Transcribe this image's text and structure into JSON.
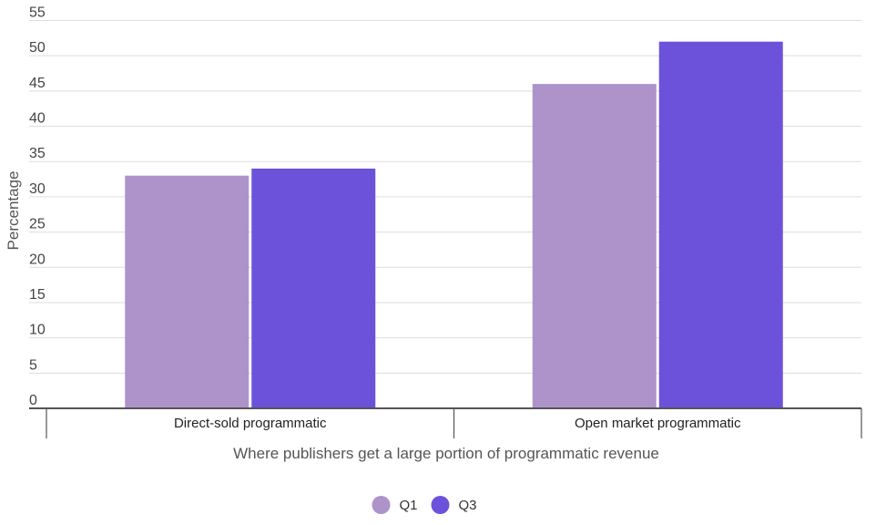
{
  "chart_data": {
    "type": "bar",
    "title": "",
    "xlabel": "Where publishers get a large portion of programmatic revenue",
    "ylabel": "Percentage",
    "ylim": [
      0,
      55
    ],
    "yticks": [
      0,
      5,
      10,
      15,
      20,
      25,
      30,
      35,
      40,
      45,
      50,
      55
    ],
    "categories": [
      "Direct-sold programmatic",
      "Open market programmatic"
    ],
    "series": [
      {
        "name": "Q1",
        "color": "#ad93ca",
        "values": [
          33,
          46
        ]
      },
      {
        "name": "Q3",
        "color": "#6c52db",
        "values": [
          34,
          52
        ]
      }
    ],
    "grid": true,
    "legend": "bottom-center"
  }
}
